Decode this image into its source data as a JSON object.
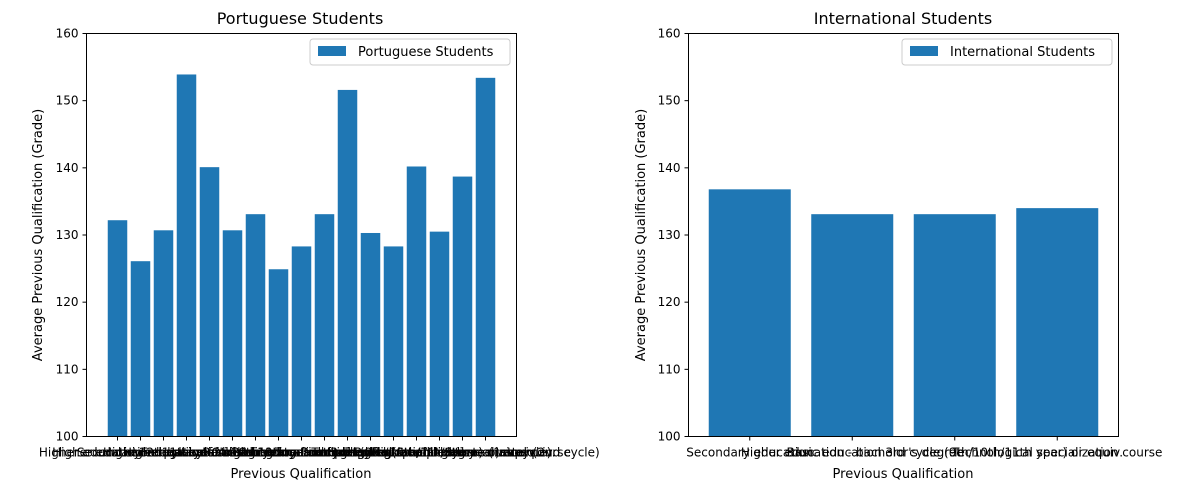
{
  "chart_data": [
    {
      "type": "bar",
      "title": "Portuguese Students",
      "xlabel": "Previous Qualification",
      "ylabel": "Average Previous Qualification (Grade)",
      "ylim": [
        100,
        160
      ],
      "yticks": [
        100,
        110,
        120,
        130,
        140,
        150,
        160
      ],
      "legend": "top-right",
      "grid": false,
      "color": "#1f77b4",
      "series": [
        {
          "name": "Portuguese Students",
          "values": [
            132.2,
            126.1,
            130.7,
            153.9,
            140.1,
            130.7,
            133.1,
            124.9,
            128.3,
            133.1,
            151.6,
            130.3,
            128.3,
            140.2,
            130.5,
            138.7,
            153.4
          ]
        }
      ],
      "categories": [
        "Higher education - degree",
        "Secondary education",
        "Higher education - bachelor's degree",
        "Higher education - master's",
        "Higher education - doctorate",
        "Frequency of higher education",
        "12th year of schooling - not completed",
        "11th year of schooling - not completed",
        "Other - 11th year of schooling",
        "10th year of schooling",
        "10th year of schooling - not completed",
        "Basic education 3rd cycle (9th/10th/11th year) or equiv.",
        "Basic education 2nd cycle (6th/7th/8th year) or equiv.",
        "Technological specialization course",
        "Higher education - degree (1st cycle)",
        "Professional higher technical course",
        "Higher education - master (2nd cycle)"
      ]
    },
    {
      "type": "bar",
      "title": "International Students",
      "xlabel": "Previous Qualification",
      "ylabel": "Average Previous Qualification (Grade)",
      "ylim": [
        100,
        160
      ],
      "yticks": [
        100,
        110,
        120,
        130,
        140,
        150,
        160
      ],
      "legend": "top-right",
      "grid": false,
      "color": "#1f77b4",
      "series": [
        {
          "name": "International Students",
          "values": [
            136.8,
            133.1,
            133.1,
            134.0
          ]
        }
      ],
      "categories": [
        "Secondary education",
        "Higher education - bachelor's degree",
        "Basic education 3rd cycle (9th/10th/11th year) or equiv.",
        "Technological specialization course"
      ]
    }
  ]
}
